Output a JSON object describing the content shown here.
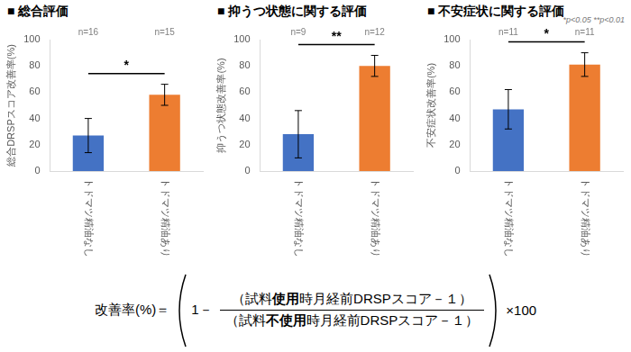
{
  "chart_data": [
    {
      "type": "bar",
      "title": "■ 総合評価",
      "y_label": "総合DRSPスコア改善率(%)",
      "categories": [
        "トドマツ精油なし",
        "トドマツ精油あり"
      ],
      "values": [
        27,
        58
      ],
      "errors": [
        13,
        8
      ],
      "n_labels": [
        "n=16",
        "n=15"
      ],
      "colors": [
        "#4472c4",
        "#ed7d31"
      ],
      "ylim": [
        0,
        100
      ],
      "yticks": [
        0,
        20,
        40,
        60,
        80,
        100
      ],
      "grid": false,
      "significance": [
        {
          "between": [
            0,
            1
          ],
          "label": "*"
        }
      ]
    },
    {
      "type": "bar",
      "title": "■ 抑うつ状態に関する評価",
      "y_label": "抑うつ状態改善率(%)",
      "categories": [
        "トドマツ精油なし",
        "トドマツ精油あり"
      ],
      "values": [
        28,
        80
      ],
      "errors": [
        18,
        8
      ],
      "n_labels": [
        "n=9",
        "n=12"
      ],
      "colors": [
        "#4472c4",
        "#ed7d31"
      ],
      "ylim": [
        0,
        100
      ],
      "yticks": [
        0,
        20,
        40,
        60,
        80,
        100
      ],
      "grid": false,
      "significance": [
        {
          "between": [
            0,
            1
          ],
          "label": "**"
        }
      ]
    },
    {
      "type": "bar",
      "title": "■ 不安症状に関する評価",
      "y_label": "不安症状改善率(%)",
      "categories": [
        "トドマツ精油なし",
        "トドマツ精油あり"
      ],
      "values": [
        47,
        81
      ],
      "errors": [
        15,
        9
      ],
      "n_labels": [
        "n=11",
        "n=11"
      ],
      "colors": [
        "#4472c4",
        "#ed7d31"
      ],
      "ylim": [
        0,
        100
      ],
      "yticks": [
        0,
        20,
        40,
        60,
        80,
        100
      ],
      "grid": false,
      "significance": [
        {
          "between": [
            0,
            1
          ],
          "label": "*"
        }
      ],
      "note": "*p<0.05 **p<0.01"
    }
  ],
  "formula": {
    "lhs": "改善率(%)＝",
    "minuend": "1－",
    "numerator": [
      "（試料",
      "使用",
      "時月経前DRSPスコア－１）"
    ],
    "denominator": [
      "（試料",
      "不使用",
      "時月経前DRSPスコア－１）"
    ],
    "multiplier": "×100"
  }
}
